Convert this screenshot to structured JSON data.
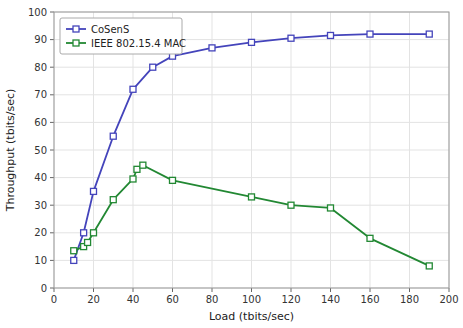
{
  "chart_data": {
    "type": "line",
    "xlabel": "Load (tbits/sec)",
    "ylabel": "Throughput (tbits/sec)",
    "series": [
      {
        "name": "CoSenS",
        "color": "#4444bb",
        "marker": "square",
        "x": [
          10,
          15,
          20,
          30,
          40,
          50,
          60,
          80,
          100,
          120,
          140,
          160,
          190
        ],
        "values": [
          10,
          20,
          35,
          55,
          72,
          80,
          84,
          87,
          89,
          90.5,
          91.5,
          92,
          92
        ]
      },
      {
        "name": "IEEE 802.15.4 MAC",
        "color": "#228833",
        "marker": "square",
        "x": [
          10,
          15,
          17,
          20,
          30,
          40,
          42,
          45,
          60,
          100,
          120,
          140,
          160,
          190
        ],
        "values": [
          13.5,
          15,
          16.5,
          20,
          32,
          39.5,
          43,
          44.5,
          39,
          33,
          30,
          29,
          18,
          8
        ]
      }
    ],
    "xlim": [
      0,
      200
    ],
    "ylim": [
      0,
      100
    ],
    "xticks": [
      0,
      20,
      40,
      60,
      80,
      100,
      120,
      140,
      160,
      180,
      200
    ],
    "yticks": [
      0,
      10,
      20,
      30,
      40,
      50,
      60,
      70,
      80,
      90,
      100
    ],
    "grid": true,
    "legend": "upper left"
  }
}
